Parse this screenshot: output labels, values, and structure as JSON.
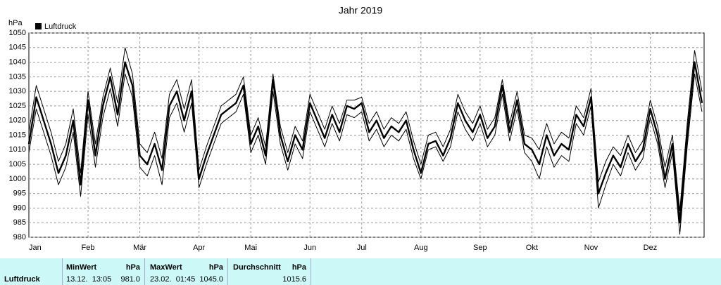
{
  "chart_data": {
    "type": "line",
    "title": "Jahr 2019",
    "y_label": "hPa",
    "categories": [
      "Jan",
      null,
      null,
      null,
      null,
      null,
      null,
      null,
      "Feb",
      null,
      null,
      null,
      null,
      null,
      null,
      "Mär",
      null,
      null,
      null,
      null,
      null,
      null,
      null,
      "Apr",
      null,
      null,
      null,
      null,
      null,
      null,
      "Mai",
      null,
      null,
      null,
      null,
      null,
      null,
      null,
      "Jun",
      null,
      null,
      null,
      null,
      null,
      null,
      "Jul",
      null,
      null,
      null,
      null,
      null,
      null,
      null,
      "Aug",
      null,
      null,
      null,
      null,
      null,
      null,
      null,
      "Sep",
      null,
      null,
      null,
      null,
      null,
      null,
      "Okt",
      null,
      null,
      null,
      null,
      null,
      null,
      null,
      "Nov",
      null,
      null,
      null,
      null,
      null,
      null,
      null,
      "Dez",
      null,
      null,
      null,
      null,
      null,
      null,
      null
    ],
    "series": [
      {
        "name": "Luftdruck",
        "color": "#000000",
        "values": [
          1012,
          1028,
          1020,
          1012,
          1002,
          1008,
          1020,
          998,
          1027,
          1008,
          1025,
          1035,
          1022,
          1040,
          1032,
          1008,
          1005,
          1012,
          1003,
          1025,
          1030,
          1020,
          1030,
          1000,
          1008,
          1015,
          1022,
          1024,
          1026,
          1032,
          1012,
          1018,
          1008,
          1034,
          1015,
          1006,
          1015,
          1010,
          1026,
          1020,
          1014,
          1022,
          1016,
          1025,
          1024,
          1026,
          1016,
          1020,
          1014,
          1018,
          1016,
          1020,
          1010,
          1002,
          1012,
          1013,
          1008,
          1014,
          1026,
          1020,
          1016,
          1022,
          1014,
          1018,
          1032,
          1016,
          1027,
          1012,
          1010,
          1005,
          1015,
          1008,
          1012,
          1010,
          1022,
          1018,
          1028,
          995,
          1002,
          1008,
          1004,
          1012,
          1006,
          1010,
          1024,
          1015,
          1000,
          1012,
          985,
          1015,
          1040,
          1026
        ]
      },
      {
        "color": "#000000",
        "values": [
          1009,
          1024,
          1016,
          1008,
          998,
          1004,
          1016,
          994,
          1022,
          1004,
          1021,
          1031,
          1018,
          1036,
          1028,
          1004,
          1001,
          1008,
          998,
          1021,
          1026,
          1016,
          1026,
          997,
          1005,
          1012,
          1019,
          1021,
          1023,
          1029,
          1009,
          1015,
          1005,
          1030,
          1012,
          1003,
          1012,
          1007,
          1023,
          1017,
          1011,
          1019,
          1013,
          1022,
          1021,
          1023,
          1013,
          1017,
          1011,
          1015,
          1013,
          1017,
          1007,
          1000,
          1010,
          1011,
          1006,
          1011,
          1023,
          1017,
          1013,
          1019,
          1011,
          1015,
          1029,
          1013,
          1024,
          1009,
          1006,
          1000,
          1011,
          1004,
          1008,
          1006,
          1019,
          1015,
          1025,
          990,
          998,
          1005,
          1001,
          1009,
          1003,
          1007,
          1021,
          1012,
          997,
          1009,
          981,
          1011,
          1036,
          1023
        ]
      },
      {
        "color": "#000000",
        "values": [
          1016,
          1032,
          1024,
          1016,
          1006,
          1012,
          1024,
          1002,
          1030,
          1012,
          1028,
          1038,
          1026,
          1045,
          1036,
          1012,
          1009,
          1016,
          1007,
          1029,
          1034,
          1024,
          1034,
          1003,
          1011,
          1018,
          1025,
          1027,
          1029,
          1035,
          1015,
          1021,
          1011,
          1036,
          1018,
          1009,
          1018,
          1013,
          1029,
          1023,
          1017,
          1025,
          1019,
          1027,
          1027,
          1028,
          1019,
          1023,
          1017,
          1021,
          1019,
          1023,
          1013,
          1005,
          1015,
          1016,
          1011,
          1017,
          1029,
          1023,
          1019,
          1025,
          1017,
          1021,
          1034,
          1019,
          1030,
          1015,
          1014,
          1010,
          1019,
          1012,
          1016,
          1014,
          1025,
          1021,
          1031,
          999,
          1006,
          1011,
          1008,
          1015,
          1009,
          1013,
          1027,
          1018,
          1004,
          1015,
          989,
          1019,
          1044,
          1030
        ]
      }
    ],
    "ylim": [
      980,
      1050
    ],
    "yticks": [
      980,
      985,
      990,
      995,
      1000,
      1005,
      1010,
      1015,
      1020,
      1025,
      1030,
      1035,
      1040,
      1045,
      1050
    ],
    "grid": true
  },
  "stats": {
    "row_label": "Luftdruck",
    "columns": [
      {
        "header": "MinWert",
        "unit": "hPa",
        "time": "13.12.  13:05",
        "value": "981.0"
      },
      {
        "header": "MaxWert",
        "unit": "hPa",
        "time": "23.02.  01:45",
        "value": "1045.0"
      },
      {
        "header": "Durchschnitt",
        "unit": "hPa",
        "value": "1015.6"
      }
    ]
  }
}
